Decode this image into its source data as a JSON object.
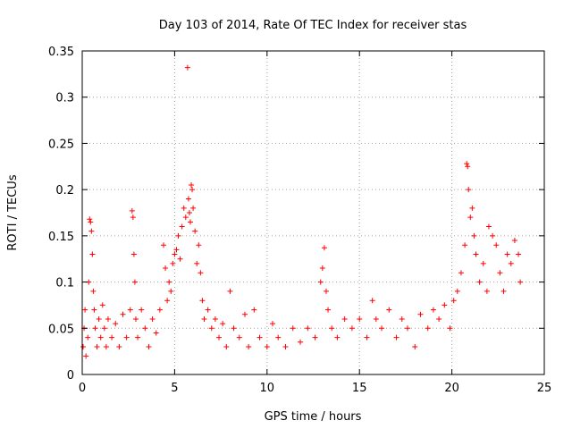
{
  "chart_data": {
    "type": "scatter",
    "title": "Day 103 of 2014, Rate Of TEC Index for receiver stas",
    "xlabel": "GPS time / hours",
    "ylabel": "ROTI / TECUs",
    "xlim": [
      0,
      25
    ],
    "ylim": [
      0,
      0.35
    ],
    "xticks": [
      0,
      5,
      10,
      15,
      20,
      25
    ],
    "xtick_labels": [
      "0",
      "5",
      "10",
      "15",
      "20",
      "25"
    ],
    "yticks": [
      0,
      0.05,
      0.1,
      0.15,
      0.2,
      0.25,
      0.3,
      0.35
    ],
    "ytick_labels": [
      "0",
      "0.05",
      "0.1",
      "0.15",
      "0.2",
      "0.25",
      "0.3",
      "0.35"
    ],
    "grid": true,
    "marker": "+",
    "color": "#ff0000",
    "series": [
      {
        "name": "ROTI",
        "points": [
          [
            0.05,
            0.03
          ],
          [
            0.1,
            0.05
          ],
          [
            0.15,
            0.07
          ],
          [
            0.2,
            0.02
          ],
          [
            0.3,
            0.04
          ],
          [
            0.35,
            0.1
          ],
          [
            0.4,
            0.168
          ],
          [
            0.45,
            0.165
          ],
          [
            0.5,
            0.155
          ],
          [
            0.55,
            0.13
          ],
          [
            0.6,
            0.09
          ],
          [
            0.65,
            0.07
          ],
          [
            0.7,
            0.05
          ],
          [
            0.8,
            0.03
          ],
          [
            0.9,
            0.06
          ],
          [
            1.0,
            0.04
          ],
          [
            1.1,
            0.075
          ],
          [
            1.2,
            0.05
          ],
          [
            1.3,
            0.03
          ],
          [
            1.4,
            0.06
          ],
          [
            1.6,
            0.04
          ],
          [
            1.8,
            0.055
          ],
          [
            2.0,
            0.03
          ],
          [
            2.2,
            0.065
          ],
          [
            2.4,
            0.04
          ],
          [
            2.6,
            0.07
          ],
          [
            2.7,
            0.177
          ],
          [
            2.75,
            0.17
          ],
          [
            2.8,
            0.13
          ],
          [
            2.85,
            0.1
          ],
          [
            2.9,
            0.06
          ],
          [
            3.0,
            0.04
          ],
          [
            3.2,
            0.07
          ],
          [
            3.4,
            0.05
          ],
          [
            3.6,
            0.03
          ],
          [
            3.8,
            0.06
          ],
          [
            4.0,
            0.045
          ],
          [
            4.2,
            0.07
          ],
          [
            4.4,
            0.14
          ],
          [
            4.5,
            0.115
          ],
          [
            4.6,
            0.08
          ],
          [
            4.7,
            0.1
          ],
          [
            4.8,
            0.09
          ],
          [
            4.9,
            0.12
          ],
          [
            5.0,
            0.13
          ],
          [
            5.1,
            0.135
          ],
          [
            5.2,
            0.15
          ],
          [
            5.3,
            0.125
          ],
          [
            5.4,
            0.16
          ],
          [
            5.5,
            0.18
          ],
          [
            5.6,
            0.17
          ],
          [
            5.7,
            0.332
          ],
          [
            5.75,
            0.19
          ],
          [
            5.8,
            0.175
          ],
          [
            5.85,
            0.165
          ],
          [
            5.9,
            0.205
          ],
          [
            5.95,
            0.2
          ],
          [
            6.0,
            0.18
          ],
          [
            6.1,
            0.155
          ],
          [
            6.2,
            0.12
          ],
          [
            6.3,
            0.14
          ],
          [
            6.4,
            0.11
          ],
          [
            6.5,
            0.08
          ],
          [
            6.6,
            0.06
          ],
          [
            6.8,
            0.07
          ],
          [
            7.0,
            0.05
          ],
          [
            7.2,
            0.06
          ],
          [
            7.4,
            0.04
          ],
          [
            7.6,
            0.055
          ],
          [
            7.8,
            0.03
          ],
          [
            8.0,
            0.09
          ],
          [
            8.2,
            0.05
          ],
          [
            8.5,
            0.04
          ],
          [
            8.8,
            0.065
          ],
          [
            9.0,
            0.03
          ],
          [
            9.3,
            0.07
          ],
          [
            9.6,
            0.04
          ],
          [
            10.0,
            0.03
          ],
          [
            10.3,
            0.055
          ],
          [
            10.6,
            0.04
          ],
          [
            11.0,
            0.03
          ],
          [
            11.4,
            0.05
          ],
          [
            11.8,
            0.035
          ],
          [
            12.2,
            0.05
          ],
          [
            12.6,
            0.04
          ],
          [
            12.9,
            0.1
          ],
          [
            13.0,
            0.115
          ],
          [
            13.1,
            0.137
          ],
          [
            13.2,
            0.09
          ],
          [
            13.3,
            0.07
          ],
          [
            13.5,
            0.05
          ],
          [
            13.8,
            0.04
          ],
          [
            14.2,
            0.06
          ],
          [
            14.6,
            0.05
          ],
          [
            15.0,
            0.06
          ],
          [
            15.4,
            0.04
          ],
          [
            15.7,
            0.08
          ],
          [
            15.9,
            0.06
          ],
          [
            16.2,
            0.05
          ],
          [
            16.6,
            0.07
          ],
          [
            17.0,
            0.04
          ],
          [
            17.3,
            0.06
          ],
          [
            17.6,
            0.05
          ],
          [
            18.0,
            0.03
          ],
          [
            18.3,
            0.065
          ],
          [
            18.7,
            0.05
          ],
          [
            19.0,
            0.07
          ],
          [
            19.3,
            0.06
          ],
          [
            19.6,
            0.075
          ],
          [
            19.9,
            0.05
          ],
          [
            20.1,
            0.08
          ],
          [
            20.3,
            0.09
          ],
          [
            20.5,
            0.11
          ],
          [
            20.7,
            0.14
          ],
          [
            20.8,
            0.228
          ],
          [
            20.85,
            0.225
          ],
          [
            20.9,
            0.2
          ],
          [
            21.0,
            0.17
          ],
          [
            21.1,
            0.18
          ],
          [
            21.2,
            0.15
          ],
          [
            21.3,
            0.13
          ],
          [
            21.5,
            0.1
          ],
          [
            21.7,
            0.12
          ],
          [
            21.9,
            0.09
          ],
          [
            22.0,
            0.16
          ],
          [
            22.2,
            0.15
          ],
          [
            22.4,
            0.14
          ],
          [
            22.6,
            0.11
          ],
          [
            22.8,
            0.09
          ],
          [
            23.0,
            0.13
          ],
          [
            23.2,
            0.12
          ],
          [
            23.4,
            0.145
          ],
          [
            23.6,
            0.13
          ],
          [
            23.7,
            0.1
          ]
        ]
      }
    ]
  }
}
